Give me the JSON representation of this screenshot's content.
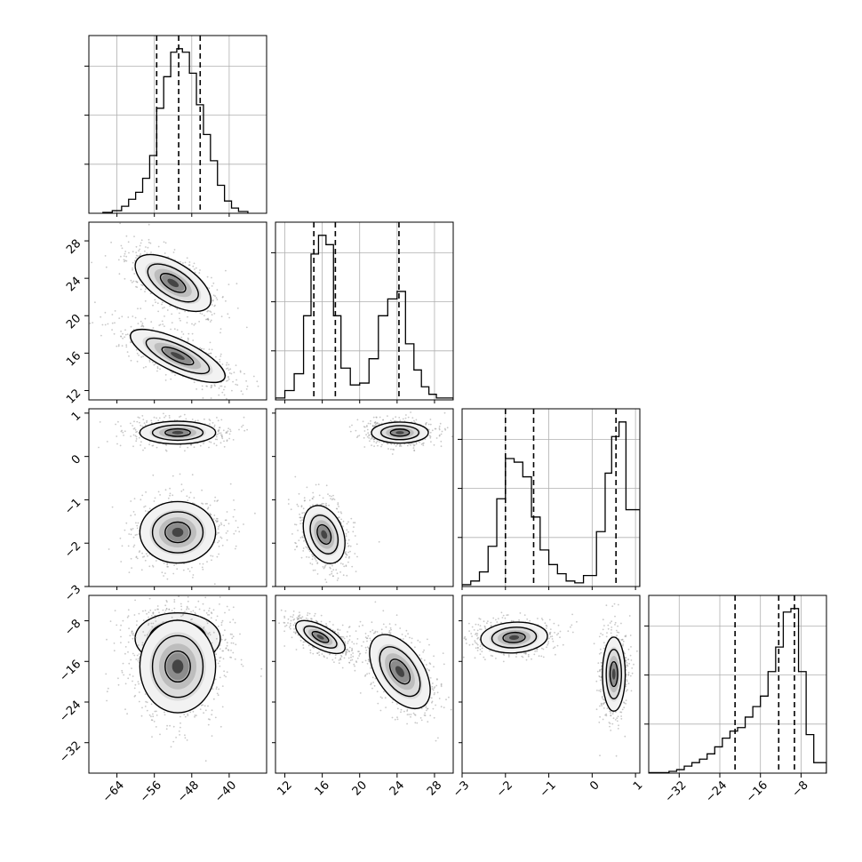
{
  "chart_data": {
    "type": "corner",
    "parameters": 4,
    "axes": [
      {
        "name": "",
        "range": [
          -70,
          -32
        ],
        "ticks": [
          -64,
          -56,
          -48,
          -40
        ],
        "tick_labels": [
          "−64",
          "−56",
          "−48",
          "−40"
        ]
      },
      {
        "name": "",
        "range": [
          11,
          30
        ],
        "ticks": [
          12,
          16,
          20,
          24,
          28
        ],
        "tick_labels": [
          "12",
          "16",
          "20",
          "24",
          "28"
        ]
      },
      {
        "name": "",
        "range": [
          -3,
          1.1
        ],
        "ticks": [
          -3,
          -2,
          -1,
          0,
          1
        ],
        "tick_labels": [
          "−3",
          "−2",
          "−1",
          "0",
          "1"
        ]
      },
      {
        "name": "",
        "range": [
          -38,
          -3
        ],
        "ticks": [
          -32,
          -24,
          -16,
          -8
        ],
        "tick_labels": [
          "−32",
          "−24",
          "−16",
          "−8"
        ]
      }
    ],
    "histograms": [
      {
        "param": 0,
        "quantiles": [
          -55.5,
          -50.8,
          -46.2
        ],
        "bin_edges": [
          -67,
          -65,
          -63,
          -61.5,
          -60,
          -58.5,
          -57,
          -55.5,
          -54,
          -52.5,
          -51.2,
          -50,
          -48.5,
          -47,
          -45.5,
          -44,
          -42.5,
          -41,
          -39.5,
          -38,
          -36
        ],
        "counts": [
          0.5,
          1.5,
          4,
          8,
          12,
          20,
          33,
          60,
          78,
          92,
          94,
          92,
          80,
          62,
          45,
          30,
          16,
          7,
          3,
          1
        ]
      },
      {
        "param": 1,
        "quantiles": [
          15.1,
          17.4,
          24.2
        ],
        "bin_edges": [
          11,
          12,
          13,
          14,
          14.8,
          15.6,
          16.4,
          17.2,
          18,
          19,
          20,
          21,
          22,
          23,
          24,
          24.9,
          25.8,
          26.6,
          27.4,
          28.2,
          30
        ],
        "counts": [
          1,
          5,
          14,
          45,
          78,
          88,
          83,
          45,
          17,
          8,
          9,
          22,
          45,
          54,
          58,
          30,
          16,
          7,
          3,
          1
        ]
      },
      {
        "param": 2,
        "quantiles": [
          -2.0,
          -1.35,
          0.55
        ],
        "bin_edges": [
          -3,
          -2.8,
          -2.6,
          -2.4,
          -2.2,
          -2.0,
          -1.8,
          -1.6,
          -1.4,
          -1.2,
          -1.0,
          -0.8,
          -0.6,
          -0.4,
          -0.2,
          0.1,
          0.3,
          0.45,
          0.62,
          0.78,
          1.1
        ],
        "counts": [
          1,
          3,
          8,
          22,
          48,
          70,
          68,
          60,
          38,
          20,
          12,
          7,
          3,
          2,
          6,
          30,
          62,
          82,
          90,
          42
        ]
      },
      {
        "param": 3,
        "quantiles": [
          -21.0,
          -12.4,
          -9.3
        ],
        "bin_edges": [
          -38,
          -34,
          -32.5,
          -31,
          -29.5,
          -28,
          -26.5,
          -25,
          -23.5,
          -22,
          -20.5,
          -19,
          -17.5,
          -16,
          -14.5,
          -13,
          -11.5,
          -10,
          -8.5,
          -7,
          -5.5,
          -3
        ],
        "counts": [
          0.3,
          1,
          2,
          4,
          6,
          8,
          11,
          15,
          20,
          24,
          26,
          32,
          38,
          44,
          58,
          72,
          92,
          94,
          58,
          22,
          6
        ]
      }
    ],
    "pairs": [
      {
        "x_param": 0,
        "y_param": 1,
        "clusters": [
          {
            "mean": [
              -52,
              23.5
            ],
            "sd": [
              4,
              1.5
            ],
            "rho": -0.6
          },
          {
            "mean": [
              -51,
              15.7
            ],
            "sd": [
              5,
              1.4
            ],
            "rho": -0.75
          }
        ]
      },
      {
        "x_param": 0,
        "y_param": 2,
        "clusters": [
          {
            "mean": [
              -51,
              0.55
            ],
            "sd": [
              4,
              0.13
            ],
            "rho": 0.0
          },
          {
            "mean": [
              -51,
              -1.75
            ],
            "sd": [
              4,
              0.35
            ],
            "rho": 0.0
          }
        ]
      },
      {
        "x_param": 1,
        "y_param": 2,
        "clusters": [
          {
            "mean": [
              24.3,
              0.55
            ],
            "sd": [
              1.5,
              0.12
            ],
            "rho": 0.0
          },
          {
            "mean": [
              16.2,
              -1.8
            ],
            "sd": [
              1.1,
              0.33
            ],
            "rho": -0.3
          }
        ]
      },
      {
        "x_param": 0,
        "y_param": 3,
        "clusters": [
          {
            "mean": [
              -51,
              -11.5
            ],
            "sd": [
              4.5,
              2.5
            ],
            "rho": 0.0
          },
          {
            "mean": [
              -51,
              -17
            ],
            "sd": [
              4,
              4.5
            ],
            "rho": 0.0
          }
        ]
      },
      {
        "x_param": 1,
        "y_param": 3,
        "clusters": [
          {
            "mean": [
              15.8,
              -11.2
            ],
            "sd": [
              1.3,
              1.6
            ],
            "rho": -0.65
          },
          {
            "mean": [
              24.3,
              -18
            ],
            "sd": [
              1.6,
              3.6
            ],
            "rho": -0.5
          }
        ]
      },
      {
        "x_param": 2,
        "y_param": 3,
        "clusters": [
          {
            "mean": [
              -1.8,
              -11.3
            ],
            "sd": [
              0.38,
              1.5
            ],
            "rho": 0.1
          },
          {
            "mean": [
              0.5,
              -18.5
            ],
            "sd": [
              0.13,
              3.6
            ],
            "rho": 0.0
          }
        ]
      }
    ],
    "grid": true,
    "quantile_style": "dashed",
    "contour_levels": [
      0.5,
      1.0,
      1.5
    ]
  }
}
